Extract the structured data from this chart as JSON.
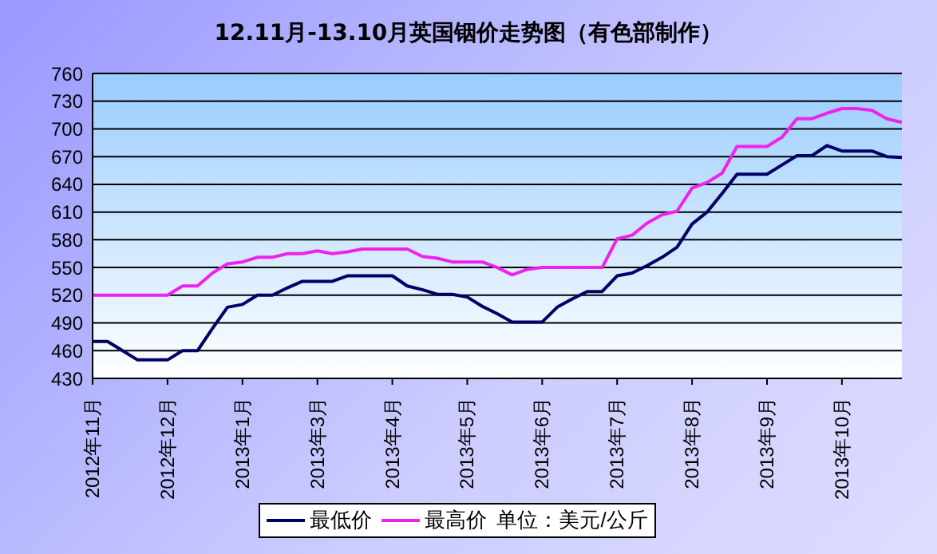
{
  "chart_data": {
    "type": "line",
    "title": "12.11月-13.10月英国铟价走势图（有色部制作）",
    "categories": [
      "2012年11月",
      null,
      null,
      null,
      null,
      "2012年12月",
      null,
      null,
      null,
      null,
      "2013年1月",
      null,
      null,
      null,
      null,
      "2013年3月",
      null,
      null,
      null,
      null,
      "2013年4月",
      null,
      null,
      null,
      null,
      "2013年5月",
      null,
      null,
      null,
      null,
      "2013年6月",
      null,
      null,
      null,
      null,
      "2013年7月",
      null,
      null,
      null,
      null,
      "2013年8月",
      null,
      null,
      null,
      null,
      "2013年9月",
      null,
      null,
      null,
      null,
      "2013年10月",
      null,
      null,
      null,
      null
    ],
    "ylim": [
      430,
      760
    ],
    "yticks": [
      430,
      460,
      490,
      520,
      550,
      580,
      610,
      640,
      670,
      700,
      730,
      760
    ],
    "grid": "y",
    "legend": "bottom",
    "marker": "none",
    "line_style": "solid",
    "annotations": [
      "单位：美元/公斤"
    ],
    "series": [
      {
        "name": "最低价",
        "color": "#000066",
        "values": [
          470,
          470,
          460,
          450,
          450,
          450,
          460,
          460,
          484,
          507,
          510,
          520,
          520,
          528,
          535,
          535,
          535,
          541,
          541,
          541,
          541,
          530,
          526,
          521,
          521,
          518,
          508,
          500,
          491,
          491,
          491,
          507,
          516,
          524,
          524,
          541,
          544,
          552,
          561,
          572,
          597,
          610,
          630,
          651,
          651,
          651,
          661,
          671,
          671,
          682,
          676,
          676,
          676,
          670,
          669
        ]
      },
      {
        "name": "最高价",
        "color": "#ee22ee",
        "values": [
          520,
          520,
          520,
          520,
          520,
          520,
          530,
          530,
          544,
          554,
          556,
          561,
          561,
          565,
          565,
          568,
          565,
          567,
          570,
          570,
          570,
          570,
          562,
          560,
          556,
          556,
          556,
          550,
          542,
          548,
          550,
          550,
          550,
          550,
          550,
          581,
          585,
          598,
          607,
          611,
          636,
          642,
          652,
          681,
          681,
          681,
          691,
          711,
          711,
          717,
          722,
          722,
          720,
          711,
          707
        ]
      }
    ]
  }
}
